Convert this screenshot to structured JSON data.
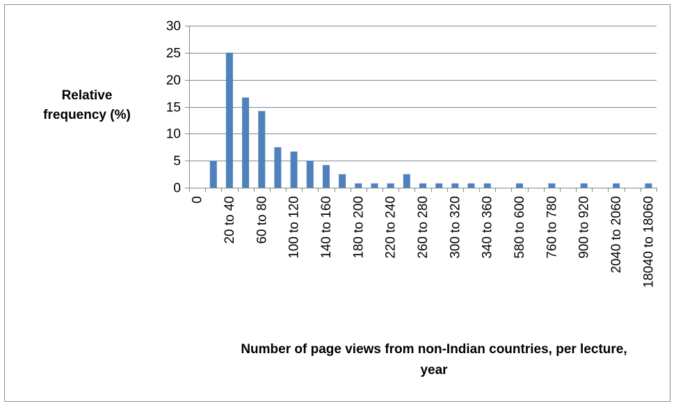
{
  "chart_data": {
    "type": "bar",
    "ylabel_lines": [
      "Relative",
      "frequency (%)"
    ],
    "xlabel_lines": [
      "Number of page views from non-Indian countries, per lecture,",
      "year"
    ],
    "ylim": [
      0,
      30
    ],
    "yticks": [
      0,
      5,
      10,
      15,
      20,
      25,
      30
    ],
    "grid": true,
    "legend": "none",
    "bar_color": "#4f81bd",
    "slots": 29,
    "bars": [
      {
        "slot": 1,
        "value": 5
      },
      {
        "slot": 2,
        "value": 25
      },
      {
        "slot": 3,
        "value": 16.7
      },
      {
        "slot": 4,
        "value": 14.2
      },
      {
        "slot": 5,
        "value": 7.5
      },
      {
        "slot": 6,
        "value": 6.7
      },
      {
        "slot": 7,
        "value": 5
      },
      {
        "slot": 8,
        "value": 4.2
      },
      {
        "slot": 9,
        "value": 2.5
      },
      {
        "slot": 10,
        "value": 0.8
      },
      {
        "slot": 11,
        "value": 0.8
      },
      {
        "slot": 12,
        "value": 0.8
      },
      {
        "slot": 13,
        "value": 2.5
      },
      {
        "slot": 14,
        "value": 0.8
      },
      {
        "slot": 15,
        "value": 0.8
      },
      {
        "slot": 16,
        "value": 0.8
      },
      {
        "slot": 17,
        "value": 0.8
      },
      {
        "slot": 18,
        "value": 0.8
      },
      {
        "slot": 20,
        "value": 0.8
      },
      {
        "slot": 22,
        "value": 0.8
      },
      {
        "slot": 24,
        "value": 0.8
      },
      {
        "slot": 26,
        "value": 0.8
      },
      {
        "slot": 28,
        "value": 0.8
      }
    ],
    "tick_labels": [
      {
        "slot": 0,
        "label": "0"
      },
      {
        "slot": 2,
        "label": "20 to 40"
      },
      {
        "slot": 4,
        "label": "60 to 80"
      },
      {
        "slot": 6,
        "label": "100 to 120"
      },
      {
        "slot": 8,
        "label": "140 to 160"
      },
      {
        "slot": 10,
        "label": "180 to 200"
      },
      {
        "slot": 12,
        "label": "220 to 240"
      },
      {
        "slot": 14,
        "label": "260 to 280"
      },
      {
        "slot": 16,
        "label": "300 to 320"
      },
      {
        "slot": 18,
        "label": "340 to 360"
      },
      {
        "slot": 20,
        "label": "580 to 600"
      },
      {
        "slot": 22,
        "label": "760 to 780"
      },
      {
        "slot": 24,
        "label": "900 to 920"
      },
      {
        "slot": 26,
        "label": "2040 to 2060"
      },
      {
        "slot": 28,
        "label": "18040 to 18060"
      }
    ]
  }
}
